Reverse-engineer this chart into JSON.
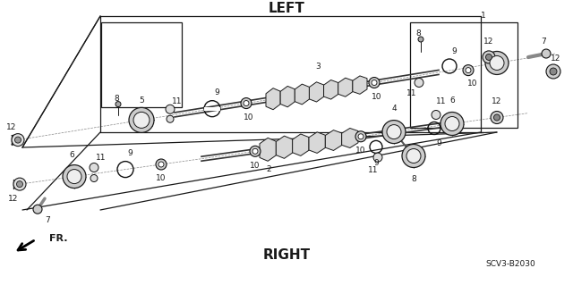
{
  "bg_color": "#ffffff",
  "label_LEFT": "LEFT",
  "label_RIGHT": "RIGHT",
  "label_FR": "FR.",
  "label_code": "SCV3-B2030",
  "fig_width": 6.4,
  "fig_height": 3.19,
  "dpi": 100
}
